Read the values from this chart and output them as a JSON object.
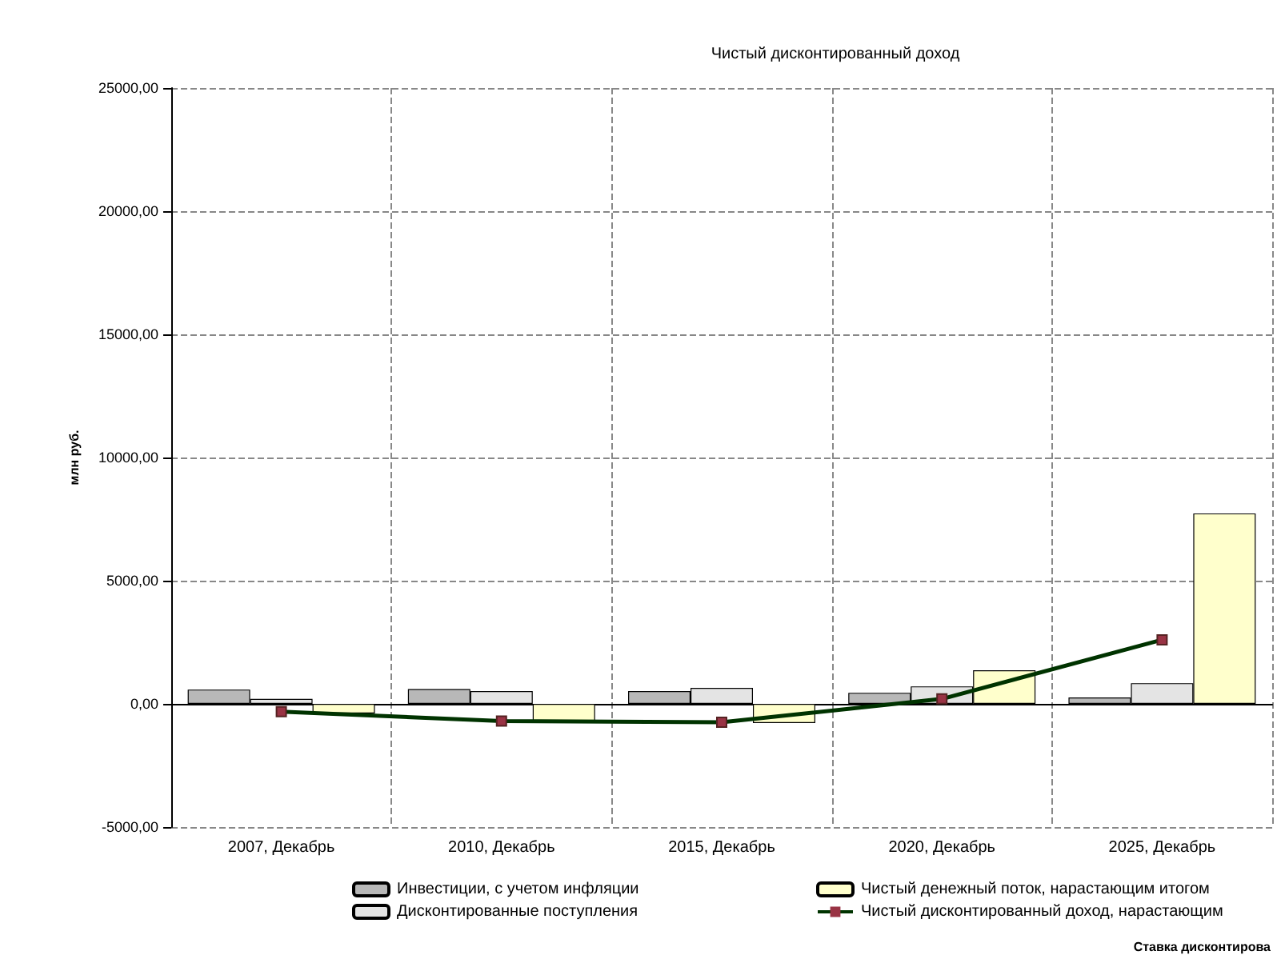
{
  "chart_data": {
    "type": "bar",
    "title": "Чистый дисконтированный доход",
    "ylabel": "млн руб.",
    "categories": [
      "2007, Декабрь",
      "2010, Декабрь",
      "2015, Декабрь",
      "2020, Декабрь",
      "2025, Декабрь"
    ],
    "series": [
      {
        "name": "Инвестиции, с учетом инфляции",
        "color": "#b8b8b8",
        "values": [
          580,
          600,
          520,
          450,
          260
        ]
      },
      {
        "name": "Дисконтированные поступления",
        "color": "#e4e4e4",
        "values": [
          200,
          520,
          650,
          710,
          840
        ]
      },
      {
        "name": "Чистый денежный поток, нарастающим итогом",
        "color": "#ffffcc",
        "values": [
          -390,
          -780,
          -780,
          1360,
          7730
        ]
      },
      {
        "name": "Чистый дисконтированный доход, нарастающим",
        "type": "line",
        "color": "#003300",
        "marker": "square",
        "values": [
          -320,
          -700,
          -750,
          200,
          2600
        ]
      }
    ],
    "ylim": [
      -5000,
      25000
    ],
    "yticks": [
      {
        "value": -5000,
        "label": "-5000,00"
      },
      {
        "value": 0,
        "label": "0,00"
      },
      {
        "value": 5000,
        "label": "5000,00"
      },
      {
        "value": 10000,
        "label": "10000,00"
      },
      {
        "value": 15000,
        "label": "15000,00"
      },
      {
        "value": 20000,
        "label": "20000,00"
      },
      {
        "value": 25000,
        "label": "25000,00"
      }
    ],
    "grid": true,
    "legend": "bottom",
    "line_style": "solid",
    "annotations": [
      "Ставка дисконтирова"
    ]
  }
}
